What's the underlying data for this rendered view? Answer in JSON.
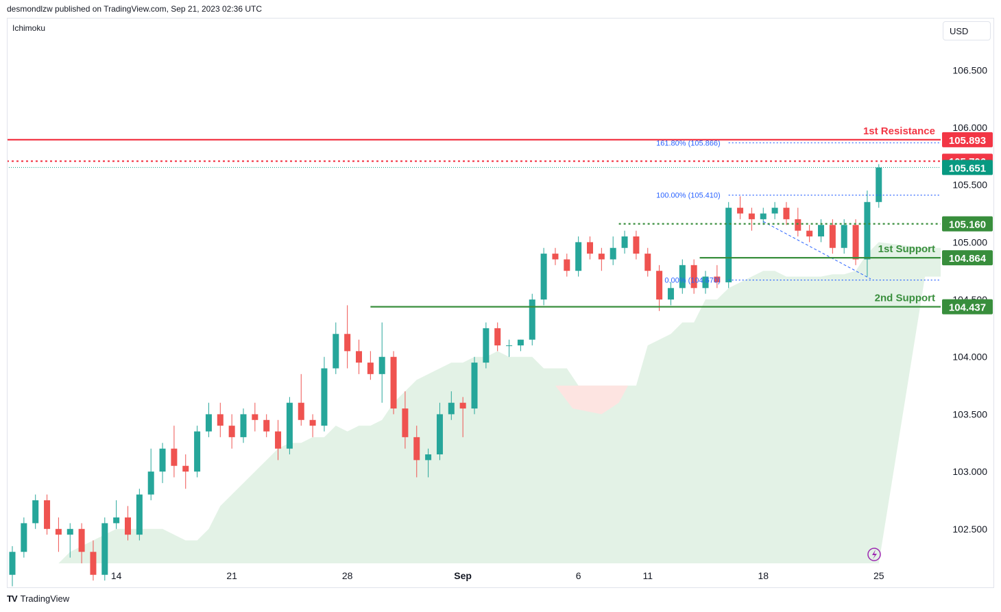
{
  "header": {
    "published_text": "desmondlzw published on TradingView.com, Sep 21, 2023 02:36 UTC"
  },
  "indicator": {
    "label": "Ichimoku"
  },
  "currency_button": {
    "label": "USD"
  },
  "footer": {
    "brand": "TradingView",
    "logo": "TV"
  },
  "colors": {
    "up": "#26a69a",
    "down": "#ef5350",
    "resistance": "#f23645",
    "support": "#388e3c",
    "fib": "#2962ff",
    "cloud_green": "#e3f2e6",
    "cloud_red": "#fde4e1",
    "current_price": "#089981"
  },
  "chart_data": {
    "type": "candlestick",
    "title": "",
    "y_axis": {
      "ticks": [
        106.5,
        106.0,
        105.5,
        105.0,
        104.5,
        104.0,
        103.5,
        103.0,
        102.5
      ],
      "tick_labels": [
        "106.500",
        "106.000",
        "105.500",
        "105.000",
        "104.500",
        "104.000",
        "103.500",
        "103.000",
        "102.500"
      ],
      "ylim": [
        102.2,
        106.95
      ]
    },
    "x_axis": {
      "tick_labels": [
        "14",
        "21",
        "28",
        "Sep",
        "6",
        "11",
        "18",
        "25"
      ],
      "tick_index": [
        9,
        19,
        29,
        39,
        49,
        55,
        65,
        75
      ]
    },
    "candles_ohlc_approx": [
      [
        102.1,
        102.35,
        102.0,
        102.3
      ],
      [
        102.3,
        102.6,
        102.25,
        102.55
      ],
      [
        102.55,
        102.8,
        102.5,
        102.75
      ],
      [
        102.75,
        102.8,
        102.45,
        102.5
      ],
      [
        102.5,
        102.6,
        102.3,
        102.45
      ],
      [
        102.45,
        102.55,
        102.25,
        102.5
      ],
      [
        102.5,
        102.55,
        102.2,
        102.3
      ],
      [
        102.3,
        102.4,
        102.05,
        102.1
      ],
      [
        102.1,
        102.6,
        102.05,
        102.55
      ],
      [
        102.55,
        102.75,
        102.5,
        102.6
      ],
      [
        102.6,
        102.7,
        102.4,
        102.45
      ],
      [
        102.45,
        102.85,
        102.4,
        102.8
      ],
      [
        102.8,
        103.2,
        102.75,
        103.0
      ],
      [
        103.0,
        103.25,
        102.9,
        103.2
      ],
      [
        103.2,
        103.4,
        102.95,
        103.05
      ],
      [
        103.05,
        103.15,
        102.85,
        103.0
      ],
      [
        103.0,
        103.4,
        102.95,
        103.35
      ],
      [
        103.35,
        103.6,
        103.3,
        103.5
      ],
      [
        103.5,
        103.6,
        103.3,
        103.4
      ],
      [
        103.4,
        103.5,
        103.2,
        103.3
      ],
      [
        103.3,
        103.55,
        103.25,
        103.5
      ],
      [
        103.5,
        103.6,
        103.35,
        103.45
      ],
      [
        103.45,
        103.5,
        103.3,
        103.35
      ],
      [
        103.35,
        103.45,
        103.1,
        103.2
      ],
      [
        103.2,
        103.65,
        103.15,
        103.6
      ],
      [
        103.6,
        103.85,
        103.4,
        103.45
      ],
      [
        103.45,
        103.5,
        103.3,
        103.4
      ],
      [
        103.4,
        104.0,
        103.35,
        103.9
      ],
      [
        103.9,
        104.3,
        103.85,
        104.2
      ],
      [
        104.2,
        104.45,
        103.9,
        104.05
      ],
      [
        104.05,
        104.15,
        103.85,
        103.95
      ],
      [
        103.95,
        104.05,
        103.8,
        103.85
      ],
      [
        103.85,
        104.3,
        103.6,
        104.0
      ],
      [
        104.0,
        104.05,
        103.5,
        103.55
      ],
      [
        103.55,
        103.7,
        103.2,
        103.3
      ],
      [
        103.3,
        103.4,
        102.95,
        103.1
      ],
      [
        103.1,
        103.2,
        102.95,
        103.15
      ],
      [
        103.15,
        103.6,
        103.1,
        103.5
      ],
      [
        103.5,
        103.7,
        103.45,
        103.6
      ],
      [
        103.6,
        103.65,
        103.3,
        103.55
      ],
      [
        103.55,
        104.0,
        103.5,
        103.95
      ],
      [
        103.95,
        104.3,
        103.9,
        104.25
      ],
      [
        104.25,
        104.3,
        104.05,
        104.1
      ],
      [
        104.1,
        104.15,
        104.0,
        104.1
      ],
      [
        104.1,
        104.15,
        104.05,
        104.15
      ],
      [
        104.15,
        104.55,
        104.1,
        104.5
      ],
      [
        104.5,
        104.95,
        104.45,
        104.9
      ],
      [
        104.9,
        104.95,
        104.8,
        104.85
      ],
      [
        104.85,
        104.9,
        104.7,
        104.75
      ],
      [
        104.75,
        105.05,
        104.7,
        105.0
      ],
      [
        105.0,
        105.05,
        104.85,
        104.9
      ],
      [
        104.9,
        104.95,
        104.75,
        104.85
      ],
      [
        104.85,
        105.05,
        104.8,
        104.95
      ],
      [
        104.95,
        105.1,
        104.9,
        105.05
      ],
      [
        105.05,
        105.1,
        104.85,
        104.9
      ],
      [
        104.9,
        104.95,
        104.7,
        104.75
      ],
      [
        104.75,
        104.8,
        104.4,
        104.5
      ],
      [
        104.5,
        104.65,
        104.45,
        104.6
      ],
      [
        104.6,
        104.85,
        104.55,
        104.8
      ],
      [
        104.8,
        104.85,
        104.55,
        104.6
      ],
      [
        104.6,
        104.75,
        104.55,
        104.7
      ],
      [
        104.7,
        104.8,
        104.6,
        104.65
      ],
      [
        104.65,
        105.35,
        104.6,
        105.3
      ],
      [
        105.3,
        105.4,
        105.2,
        105.25
      ],
      [
        105.25,
        105.3,
        105.1,
        105.2
      ],
      [
        105.2,
        105.3,
        105.15,
        105.25
      ],
      [
        105.25,
        105.35,
        105.2,
        105.3
      ],
      [
        105.3,
        105.35,
        105.15,
        105.2
      ],
      [
        105.2,
        105.3,
        105.05,
        105.1
      ],
      [
        105.1,
        105.15,
        105.0,
        105.05
      ],
      [
        105.05,
        105.2,
        105.0,
        105.15
      ],
      [
        105.15,
        105.2,
        104.9,
        104.95
      ],
      [
        104.95,
        105.2,
        104.9,
        105.15
      ],
      [
        105.15,
        105.2,
        104.8,
        104.85
      ],
      [
        104.85,
        105.45,
        104.7,
        105.35
      ],
      [
        105.35,
        105.68,
        105.3,
        105.651
      ]
    ],
    "levels": [
      {
        "name": "1st Resistance",
        "value": "105.893",
        "price": 105.893,
        "style": "solid",
        "color": "#f23645"
      },
      {
        "name": "",
        "value": "105.706",
        "price": 105.706,
        "style": "dotted",
        "color": "#f23645"
      },
      {
        "name": "",
        "value": "105.651",
        "price": 105.651,
        "style": "dotted-thin",
        "color": "#089981"
      },
      {
        "name": "",
        "value": "105.160",
        "price": 105.16,
        "style": "dotted",
        "color": "#388e3c"
      },
      {
        "name": "1st Support",
        "value": "104.864",
        "price": 104.864,
        "style": "solid",
        "color": "#388e3c"
      },
      {
        "name": "2nd Support",
        "value": "104.437",
        "price": 104.437,
        "style": "solid",
        "color": "#388e3c"
      }
    ],
    "fibonacci": [
      {
        "label": "161.80% (105.866)",
        "price": 105.866
      },
      {
        "label": "100.00% (105.410)",
        "price": 105.41
      },
      {
        "label": "0.00% (104.670)",
        "price": 104.67
      }
    ],
    "cloud_top": [
      102.2,
      102.2,
      102.2,
      102.2,
      102.2,
      102.3,
      102.35,
      102.4,
      102.45,
      102.5,
      102.5,
      102.5,
      102.5,
      102.5,
      102.45,
      102.4,
      102.4,
      102.5,
      102.7,
      102.8,
      102.9,
      103.0,
      103.1,
      103.2,
      103.25,
      103.25,
      103.3,
      103.3,
      103.4,
      103.35,
      103.4,
      103.4,
      103.45,
      103.6,
      103.7,
      103.8,
      103.85,
      103.9,
      103.95,
      103.95,
      104.0,
      104.0,
      104.05,
      104.0,
      104.0,
      104.0,
      103.9,
      103.9,
      103.9,
      103.75,
      103.75,
      103.75,
      103.75,
      103.75,
      103.75,
      104.1,
      104.15,
      104.2,
      104.3,
      104.3,
      104.5,
      104.5,
      104.6,
      104.65,
      104.7,
      104.75,
      104.75,
      104.7,
      104.7,
      104.7,
      104.7,
      104.72,
      104.72,
      104.75,
      104.9,
      105.0
    ]
  }
}
